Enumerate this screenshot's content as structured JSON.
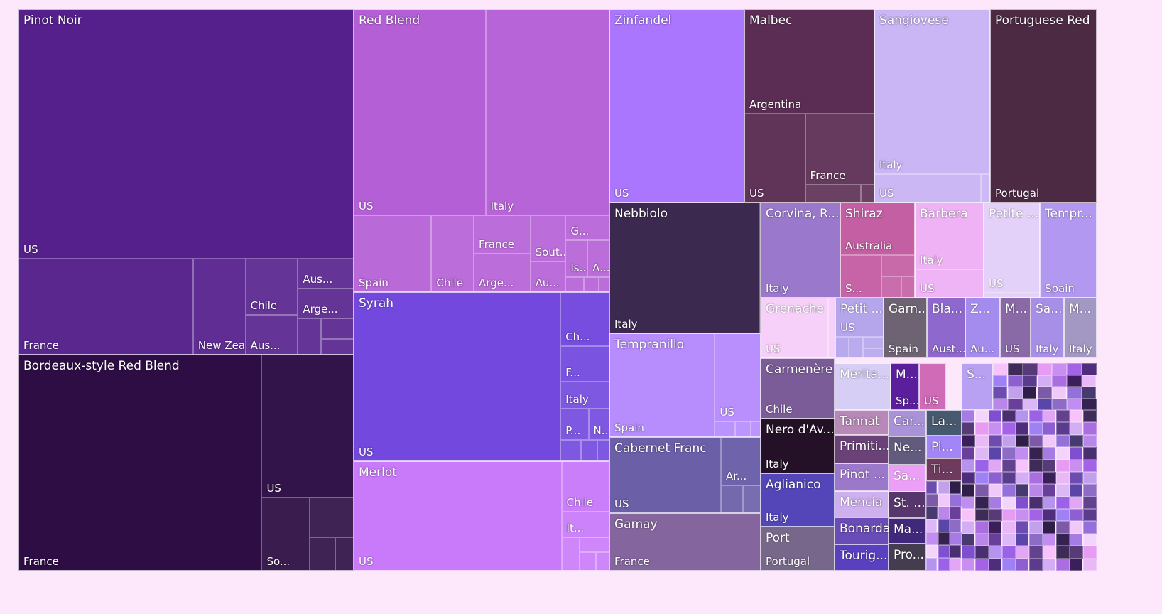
{
  "chart_data": {
    "type": "treemap",
    "hierarchy": [
      "variety",
      "country"
    ],
    "groups": [
      {
        "name": "Pinot Noir",
        "color": "#55208c",
        "children": [
          {
            "name": "US",
            "value": 100
          },
          {
            "name": "France",
            "value": 20
          },
          {
            "name": "New Zealand",
            "value": 6
          },
          {
            "name": "Chile",
            "value": 3.5
          },
          {
            "name": "Aus...",
            "value": 2.5
          },
          {
            "name": "Aus...",
            "value": 2
          },
          {
            "name": "Arge...",
            "value": 2
          },
          {
            "name": "",
            "value": 1
          },
          {
            "name": "",
            "value": 0.8
          },
          {
            "name": "",
            "value": 0.6
          }
        ]
      },
      {
        "name": "Bordeaux-style Red Blend",
        "color": "#2d0d44",
        "children": [
          {
            "name": "France",
            "value": 60
          },
          {
            "name": "US",
            "value": 15
          },
          {
            "name": "So...",
            "value": 4
          },
          {
            "name": "",
            "value": 2
          },
          {
            "name": "",
            "value": 1
          },
          {
            "name": "",
            "value": 0.7
          }
        ]
      },
      {
        "name": "Red Blend",
        "color": "#b45fd6",
        "children": [
          {
            "name": "US",
            "value": 50
          },
          {
            "name": "Italy",
            "value": 47
          },
          {
            "name": "Spain",
            "value": 11
          },
          {
            "name": "Chile",
            "value": 6
          },
          {
            "name": "France",
            "value": 4
          },
          {
            "name": "Arge...",
            "value": 4
          },
          {
            "name": "Sout...",
            "value": 3
          },
          {
            "name": "Au...",
            "value": 2
          },
          {
            "name": "G...",
            "value": 2
          },
          {
            "name": "Is...",
            "value": 1.5
          },
          {
            "name": "A...",
            "value": 1.5
          },
          {
            "name": "",
            "value": 0.5
          },
          {
            "name": "",
            "value": 0.4
          },
          {
            "name": "",
            "value": 0.3
          }
        ]
      },
      {
        "name": "Syrah",
        "color": "#7248de",
        "children": [
          {
            "name": "US",
            "value": 80
          },
          {
            "name": "Ch...",
            "value": 6
          },
          {
            "name": "F...",
            "value": 4
          },
          {
            "name": "Italy",
            "value": 3
          },
          {
            "name": "P...",
            "value": 2
          },
          {
            "name": "N...",
            "value": 1.5
          },
          {
            "name": "",
            "value": 1
          },
          {
            "name": "",
            "value": 0.8
          },
          {
            "name": "",
            "value": 0.6
          }
        ]
      },
      {
        "name": "Merlot",
        "color": "#c97afa",
        "children": [
          {
            "name": "US",
            "value": 75
          },
          {
            "name": "Chile",
            "value": 8
          },
          {
            "name": "It...",
            "value": 4
          },
          {
            "name": "",
            "value": 2
          },
          {
            "name": "",
            "value": 1.5
          },
          {
            "name": "",
            "value": 1
          },
          {
            "name": "",
            "value": 0.8
          }
        ]
      },
      {
        "name": "Zinfandel",
        "color": "#aa76fe",
        "children": [
          {
            "name": "US",
            "value": 100
          }
        ]
      },
      {
        "name": "Malbec",
        "color": "#5b2d54",
        "children": [
          {
            "name": "Argentina",
            "value": 55
          },
          {
            "name": "US",
            "value": 22
          },
          {
            "name": "France",
            "value": 20
          },
          {
            "name": "",
            "value": 4
          },
          {
            "name": "",
            "value": 1
          }
        ]
      },
      {
        "name": "Sangiovese",
        "color": "#cab5f5",
        "children": [
          {
            "name": "Italy",
            "value": 75
          },
          {
            "name": "US",
            "value": 12
          },
          {
            "name": "",
            "value": 1
          }
        ]
      },
      {
        "name": "Portuguese Red",
        "color": "#4d2a44",
        "children": [
          {
            "name": "Portugal",
            "value": 100
          }
        ]
      },
      {
        "name": "Nebbiolo",
        "color": "#3c2950",
        "children": [
          {
            "name": "Italy",
            "value": 100
          },
          {
            "name": "",
            "value": 1
          }
        ]
      },
      {
        "name": "Tempranillo",
        "color": "#b78cfd",
        "children": [
          {
            "name": "Spain",
            "value": 70
          },
          {
            "name": "US",
            "value": 26
          },
          {
            "name": "",
            "value": 2
          },
          {
            "name": "",
            "value": 1.5
          },
          {
            "name": "",
            "value": 1
          }
        ]
      },
      {
        "name": "Cabernet Franc",
        "color": "#6b5fa8",
        "children": [
          {
            "name": "US",
            "value": 70
          },
          {
            "name": "Ar...",
            "value": 16
          },
          {
            "name": "",
            "value": 5
          },
          {
            "name": "",
            "value": 4
          }
        ]
      },
      {
        "name": "Gamay",
        "color": "#84659d",
        "children": [
          {
            "name": "France",
            "value": 100
          }
        ]
      },
      {
        "name": "Corvina, R...",
        "color": "#9a78cc",
        "children": [
          {
            "name": "Italy",
            "value": 100
          }
        ]
      },
      {
        "name": "Shiraz",
        "color": "#c45fa4",
        "children": [
          {
            "name": "Australia",
            "value": 55
          },
          {
            "name": "S...",
            "value": 25
          },
          {
            "name": "",
            "value": 10
          },
          {
            "name": "",
            "value": 6
          },
          {
            "name": "",
            "value": 4
          }
        ]
      },
      {
        "name": "Barbera",
        "color": "#efb2f5",
        "children": [
          {
            "name": "Italy",
            "value": 70
          },
          {
            "name": "US",
            "value": 30
          }
        ]
      },
      {
        "name": "Petite ...",
        "color": "#e4d1f9",
        "children": [
          {
            "name": "US",
            "value": 95
          },
          {
            "name": "",
            "value": 5
          }
        ]
      },
      {
        "name": "Tempr...",
        "color": "#b398f2",
        "children": [
          {
            "name": "Spain",
            "value": 100
          }
        ]
      },
      {
        "name": "Grenache",
        "color": "#f6d0f9",
        "children": [
          {
            "name": "US",
            "value": 90
          },
          {
            "name": "",
            "value": 10
          }
        ]
      },
      {
        "name": "Petit ...",
        "color": "#b5a6ec",
        "children": [
          {
            "name": "US",
            "value": 65
          },
          {
            "name": "",
            "value": 10
          },
          {
            "name": "",
            "value": 10
          },
          {
            "name": "",
            "value": 8
          },
          {
            "name": "",
            "value": 7
          }
        ]
      },
      {
        "name": "Garn...",
        "color": "#6d6372",
        "children": [
          {
            "name": "Spain",
            "value": 100
          }
        ]
      },
      {
        "name": "Bla...",
        "color": "#8e68cc",
        "children": [
          {
            "name": "Aust...",
            "value": 100
          }
        ]
      },
      {
        "name": "Z...",
        "color": "#a48cef",
        "children": [
          {
            "name": "Au...",
            "value": 100
          }
        ]
      },
      {
        "name": "M...",
        "color": "#8a6aa6",
        "children": [
          {
            "name": "US",
            "value": 100
          }
        ]
      },
      {
        "name": "Sa...",
        "color": "#a78ee6",
        "children": [
          {
            "name": "Italy",
            "value": 100
          }
        ]
      },
      {
        "name": "M...",
        "color": "#a398c3",
        "children": [
          {
            "name": "Italy",
            "value": 100
          }
        ]
      },
      {
        "name": "Carmenère",
        "color": "#7b5c99",
        "children": [
          {
            "name": "Chile",
            "value": 100
          }
        ]
      },
      {
        "name": "Nero d'Av...",
        "color": "#241127",
        "children": [
          {
            "name": "Italy",
            "value": 100
          }
        ]
      },
      {
        "name": "Aglianico",
        "color": "#5446b8",
        "children": [
          {
            "name": "Italy",
            "value": 100
          }
        ]
      },
      {
        "name": "Port",
        "color": "#77678a",
        "children": [
          {
            "name": "Portugal",
            "value": 100
          }
        ]
      },
      {
        "name": "Merita...",
        "color": "#d7cef5",
        "children": [
          {
            "name": "",
            "value": 100
          }
        ]
      },
      {
        "name": "M...",
        "color": "#5b1f9e",
        "children": [
          {
            "name": "Sp...",
            "value": 100
          }
        ]
      },
      {
        "name": "",
        "color": "#d06bb8",
        "children": [
          {
            "name": "US",
            "value": 100
          }
        ]
      },
      {
        "name": "Tannat",
        "color": "#b788b8",
        "children": [
          {
            "name": "",
            "value": 100
          }
        ]
      },
      {
        "name": "Primiti...",
        "color": "#6a4278",
        "children": [
          {
            "name": "",
            "value": 100
          }
        ]
      },
      {
        "name": "Pinot ...",
        "color": "#9c78cb",
        "children": [
          {
            "name": "",
            "value": 100
          }
        ]
      },
      {
        "name": "Mencía",
        "color": "#cfb0ef",
        "children": [
          {
            "name": "",
            "value": 100
          }
        ]
      },
      {
        "name": "Bonarda",
        "color": "#6a4cb6",
        "children": [
          {
            "name": "",
            "value": 100
          }
        ]
      },
      {
        "name": "Tourig...",
        "color": "#5a40c0",
        "children": [
          {
            "name": "",
            "value": 100
          }
        ]
      },
      {
        "name": "Car...",
        "color": "#a992d8",
        "children": [
          {
            "name": "",
            "value": 100
          }
        ]
      },
      {
        "name": "Ne...",
        "color": "#625b7e",
        "children": [
          {
            "name": "",
            "value": 100
          }
        ]
      },
      {
        "name": "Sa...",
        "color": "#ec9ff7",
        "children": [
          {
            "name": "",
            "value": 100
          }
        ]
      },
      {
        "name": "St. ...",
        "color": "#57366c",
        "children": [
          {
            "name": "",
            "value": 100
          }
        ]
      },
      {
        "name": "Ma...",
        "color": "#41287a",
        "children": [
          {
            "name": "",
            "value": 100
          }
        ]
      },
      {
        "name": "Pro...",
        "color": "#453c50",
        "children": [
          {
            "name": "",
            "value": 100
          }
        ]
      },
      {
        "name": "La...",
        "color": "#47596e",
        "children": [
          {
            "name": "",
            "value": 100
          }
        ]
      },
      {
        "name": "Pi...",
        "color": "#a286f7",
        "children": [
          {
            "name": "",
            "value": 100
          }
        ]
      },
      {
        "name": "Ti...",
        "color": "#6e3b5e",
        "children": [
          {
            "name": "",
            "value": 100
          }
        ]
      },
      {
        "name": "S...",
        "color": "#b8a1f2",
        "children": [
          {
            "name": "",
            "value": 100
          }
        ]
      }
    ],
    "small_tile_colors": [
      "#f8c2fb",
      "#3e2b58",
      "#563b78",
      "#e59cf2",
      "#c98ff0",
      "#a463e6",
      "#4e2d7c",
      "#a080f5",
      "#8e5fd0",
      "#5b3b8c",
      "#d3aef5",
      "#ab6ee0",
      "#3b1f5a",
      "#e8b8f7",
      "#6d4cb0",
      "#c3a0ec",
      "#2f1e48",
      "#7c5aa8",
      "#f0c8fa",
      "#9570da",
      "#473a6e",
      "#b987ea",
      "#6a3f9a",
      "#dcb9f6",
      "#5a46a8",
      "#8c6cc4",
      "#c28df0",
      "#352250",
      "#a77be4",
      "#f3d4fb",
      "#7f4fcf",
      "#4a2f70",
      "#b694ee",
      "#9b62e8",
      "#e2a7f4",
      "#62418f"
    ]
  }
}
